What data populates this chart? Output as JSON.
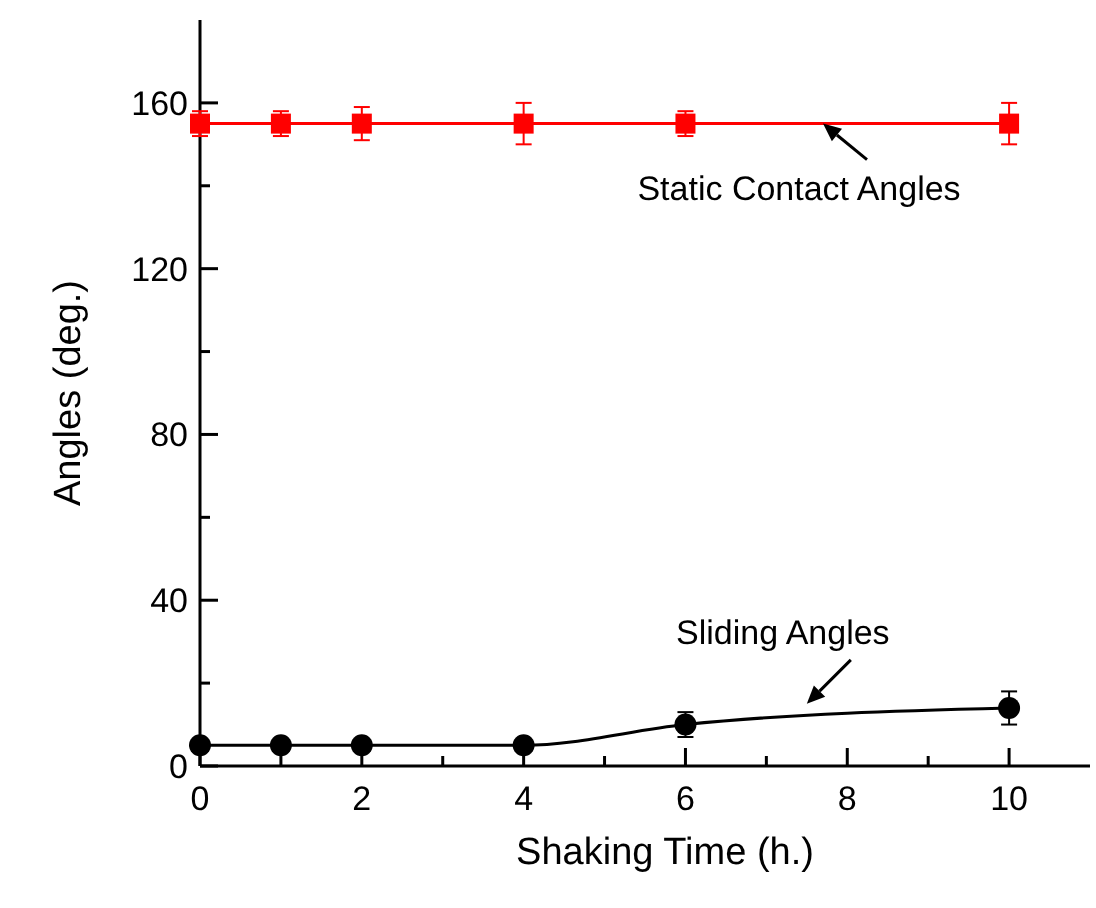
{
  "chart_data": {
    "type": "line",
    "xlabel": "Shaking Time (h.)",
    "ylabel": "Angles (deg.)",
    "x": [
      0,
      1,
      2,
      4,
      6,
      10
    ],
    "xlim": [
      0,
      11
    ],
    "xticks": [
      0,
      {
        "value": 1,
        "label": null
      },
      2,
      {
        "value": 3,
        "label": null
      },
      4,
      {
        "value": 5,
        "label": null
      },
      6,
      {
        "value": 7,
        "label": null
      },
      8,
      {
        "value": 9,
        "label": null
      },
      10
    ],
    "ylim": [
      0,
      180
    ],
    "yticks": [
      0,
      {
        "value": 20,
        "label": null
      },
      40,
      {
        "value": 60,
        "label": null
      },
      80,
      {
        "value": 100,
        "label": null
      },
      120,
      {
        "value": 140,
        "label": null
      },
      160
    ],
    "series": [
      {
        "color": "#ff0000",
        "marker": "square",
        "values": [
          155,
          155,
          155,
          155,
          155,
          155
        ],
        "errors": [
          3,
          3,
          4,
          5,
          3,
          5
        ]
      },
      {
        "color": "#000000",
        "marker": "circle",
        "values": [
          5,
          5,
          5,
          5,
          10,
          14
        ],
        "errors": [
          null,
          null,
          null,
          null,
          3,
          4
        ]
      }
    ],
    "annotations": [
      {
        "text": "Static Contact Angles",
        "x": 7.7,
        "y": 155
      },
      {
        "text": "Sliding Angles",
        "x": 7.5,
        "y": 15
      }
    ],
    "grid": false
  }
}
